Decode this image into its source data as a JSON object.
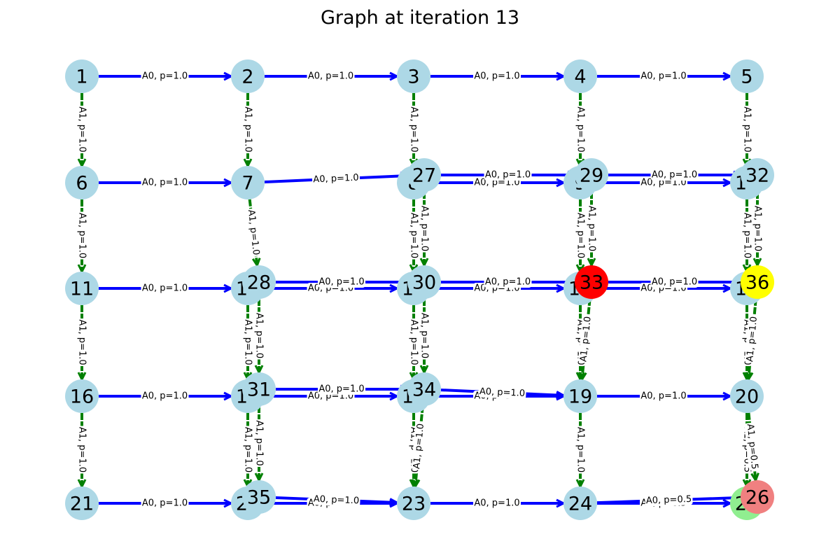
{
  "title": "Graph at iteration 13",
  "colors": {
    "node_default": "#add8e6",
    "A0": "#0000ff",
    "A1": "#008000",
    "red": "#ff0000",
    "yellow": "#ffff00",
    "lightgreen": "#90ee90",
    "lightcoral": "#f08080"
  },
  "nodes": [
    {
      "id": "1",
      "color": "node_default"
    },
    {
      "id": "2",
      "color": "node_default"
    },
    {
      "id": "3",
      "color": "node_default"
    },
    {
      "id": "4",
      "color": "node_default"
    },
    {
      "id": "5",
      "color": "node_default"
    },
    {
      "id": "6",
      "color": "node_default"
    },
    {
      "id": "7",
      "color": "node_default"
    },
    {
      "id": "8",
      "color": "node_default"
    },
    {
      "id": "9",
      "color": "node_default"
    },
    {
      "id": "10",
      "color": "node_default"
    },
    {
      "id": "11",
      "color": "node_default"
    },
    {
      "id": "12",
      "color": "node_default"
    },
    {
      "id": "13",
      "color": "node_default"
    },
    {
      "id": "14",
      "color": "node_default"
    },
    {
      "id": "15",
      "color": "node_default"
    },
    {
      "id": "16",
      "color": "node_default"
    },
    {
      "id": "17",
      "color": "node_default"
    },
    {
      "id": "18",
      "color": "node_default"
    },
    {
      "id": "19",
      "color": "node_default"
    },
    {
      "id": "20",
      "color": "node_default"
    },
    {
      "id": "21",
      "color": "node_default"
    },
    {
      "id": "22",
      "color": "node_default"
    },
    {
      "id": "23",
      "color": "node_default"
    },
    {
      "id": "24",
      "color": "node_default"
    },
    {
      "id": "25",
      "color": "lightgreen"
    },
    {
      "id": "26",
      "color": "lightcoral"
    },
    {
      "id": "27",
      "color": "node_default"
    },
    {
      "id": "28",
      "color": "node_default"
    },
    {
      "id": "29",
      "color": "node_default"
    },
    {
      "id": "30",
      "color": "node_default"
    },
    {
      "id": "31",
      "color": "node_default"
    },
    {
      "id": "32",
      "color": "node_default"
    },
    {
      "id": "33",
      "color": "red"
    },
    {
      "id": "34",
      "color": "node_default"
    },
    {
      "id": "35",
      "color": "node_default"
    },
    {
      "id": "36",
      "color": "yellow"
    }
  ],
  "edges": [
    {
      "from": "1",
      "to": "2",
      "label": "A0, p=1.0",
      "action": "A0"
    },
    {
      "from": "2",
      "to": "3",
      "label": "A0, p=1.0",
      "action": "A0"
    },
    {
      "from": "3",
      "to": "4",
      "label": "A0, p=1.0",
      "action": "A0"
    },
    {
      "from": "4",
      "to": "5",
      "label": "A0, p=1.0",
      "action": "A0"
    },
    {
      "from": "6",
      "to": "7",
      "label": "A0, p=1.0",
      "action": "A0"
    },
    {
      "from": "7",
      "to": "27",
      "label": "A0, p=1.0",
      "action": "A0"
    },
    {
      "from": "8",
      "to": "9",
      "label": "A0, p=1.0",
      "action": "A0"
    },
    {
      "from": "27",
      "to": "29",
      "label": "A0, p=1.0",
      "action": "A0"
    },
    {
      "from": "9",
      "to": "10",
      "label": "A0, p=1.0",
      "action": "A0"
    },
    {
      "from": "29",
      "to": "32",
      "label": "A0, p=1.0",
      "action": "A0"
    },
    {
      "from": "11",
      "to": "12",
      "label": "A0, p=1.0",
      "action": "A0"
    },
    {
      "from": "12",
      "to": "13",
      "label": "A0, p=1.0",
      "action": "A0"
    },
    {
      "from": "28",
      "to": "30",
      "label": "A0, p=1.0",
      "action": "A0"
    },
    {
      "from": "13",
      "to": "14",
      "label": "A0, p=1.0",
      "action": "A0"
    },
    {
      "from": "30",
      "to": "33",
      "label": "A0, p=1.0",
      "action": "A0"
    },
    {
      "from": "14",
      "to": "15",
      "label": "A0, p=1.0",
      "action": "A0"
    },
    {
      "from": "33",
      "to": "36",
      "label": "A0, p=1.0",
      "action": "A0"
    },
    {
      "from": "16",
      "to": "17",
      "label": "A0, p=1.0",
      "action": "A0"
    },
    {
      "from": "17",
      "to": "18",
      "label": "A0, p=1.0",
      "action": "A0"
    },
    {
      "from": "31",
      "to": "34",
      "label": "A0, p=1.0",
      "action": "A0"
    },
    {
      "from": "18",
      "to": "19",
      "label": "A0, p=1.0",
      "action": "A0"
    },
    {
      "from": "34",
      "to": "19",
      "label": "A0, p=1.0",
      "action": "A0"
    },
    {
      "from": "19",
      "to": "20",
      "label": "A0, p=1.0",
      "action": "A0"
    },
    {
      "from": "21",
      "to": "22",
      "label": "A0, p=1.0",
      "action": "A0"
    },
    {
      "from": "22",
      "to": "23",
      "label": "A0, p=1.0",
      "action": "A0"
    },
    {
      "from": "35",
      "to": "23",
      "label": "A0, p=1.0",
      "action": "A0"
    },
    {
      "from": "23",
      "to": "24",
      "label": "A0, p=1.0",
      "action": "A0"
    },
    {
      "from": "24",
      "to": "25",
      "label": "A0, p=0.5",
      "action": "A0"
    },
    {
      "from": "24",
      "to": "26",
      "label": "A0, p=0.5",
      "action": "A0"
    },
    {
      "from": "1",
      "to": "6",
      "label": "A1, p=1.0",
      "action": "A1"
    },
    {
      "from": "2",
      "to": "7",
      "label": "A1, p=1.0",
      "action": "A1"
    },
    {
      "from": "3",
      "to": "8",
      "label": "A1, p=1.0",
      "action": "A1"
    },
    {
      "from": "4",
      "to": "9",
      "label": "A1, p=1.0",
      "action": "A1"
    },
    {
      "from": "5",
      "to": "10",
      "label": "A1, p=1.0",
      "action": "A1"
    },
    {
      "from": "6",
      "to": "11",
      "label": "A1, p=1.0",
      "action": "A1"
    },
    {
      "from": "7",
      "to": "28",
      "label": "A1, p=1.0",
      "action": "A1"
    },
    {
      "from": "8",
      "to": "13",
      "label": "A1, p=1.0",
      "action": "A1"
    },
    {
      "from": "27",
      "to": "30",
      "label": "A1, p=1.0",
      "action": "A1"
    },
    {
      "from": "9",
      "to": "14",
      "label": "A1, p=1.0",
      "action": "A1"
    },
    {
      "from": "29",
      "to": "33",
      "label": "A1, p=1.0",
      "action": "A1"
    },
    {
      "from": "10",
      "to": "15",
      "label": "A1, p=1.0",
      "action": "A1"
    },
    {
      "from": "32",
      "to": "36",
      "label": "A1, p=1.0",
      "action": "A1"
    },
    {
      "from": "11",
      "to": "16",
      "label": "A1, p=1.0",
      "action": "A1"
    },
    {
      "from": "12",
      "to": "17",
      "label": "A1, p=1.0",
      "action": "A1"
    },
    {
      "from": "28",
      "to": "31",
      "label": "A1, p=1.0",
      "action": "A1"
    },
    {
      "from": "13",
      "to": "18",
      "label": "A1, p=1.0",
      "action": "A1"
    },
    {
      "from": "30",
      "to": "34",
      "label": "A1, p=1.0",
      "action": "A1"
    },
    {
      "from": "14",
      "to": "19",
      "label": "A1, p=1.0",
      "action": "A1"
    },
    {
      "from": "33",
      "to": "19",
      "label": "A1, p=1.0",
      "action": "A1"
    },
    {
      "from": "15",
      "to": "20",
      "label": "A1, p=1.0",
      "action": "A1"
    },
    {
      "from": "36",
      "to": "20",
      "label": "A1, p=1.0",
      "action": "A1"
    },
    {
      "from": "16",
      "to": "21",
      "label": "A1, p=1.0",
      "action": "A1"
    },
    {
      "from": "17",
      "to": "22",
      "label": "A1, p=1.0",
      "action": "A1"
    },
    {
      "from": "31",
      "to": "35",
      "label": "A1, p=1.0",
      "action": "A1"
    },
    {
      "from": "18",
      "to": "23",
      "label": "A1, p=1.0",
      "action": "A1"
    },
    {
      "from": "34",
      "to": "23",
      "label": "A1, p=1.0",
      "action": "A1"
    },
    {
      "from": "19",
      "to": "24",
      "label": "A1, p=1.0",
      "action": "A1"
    },
    {
      "from": "20",
      "to": "25",
      "label": "A1, p=0.5",
      "action": "A1"
    },
    {
      "from": "20",
      "to": "26",
      "label": "A1, p=0.5",
      "action": "A1"
    }
  ]
}
